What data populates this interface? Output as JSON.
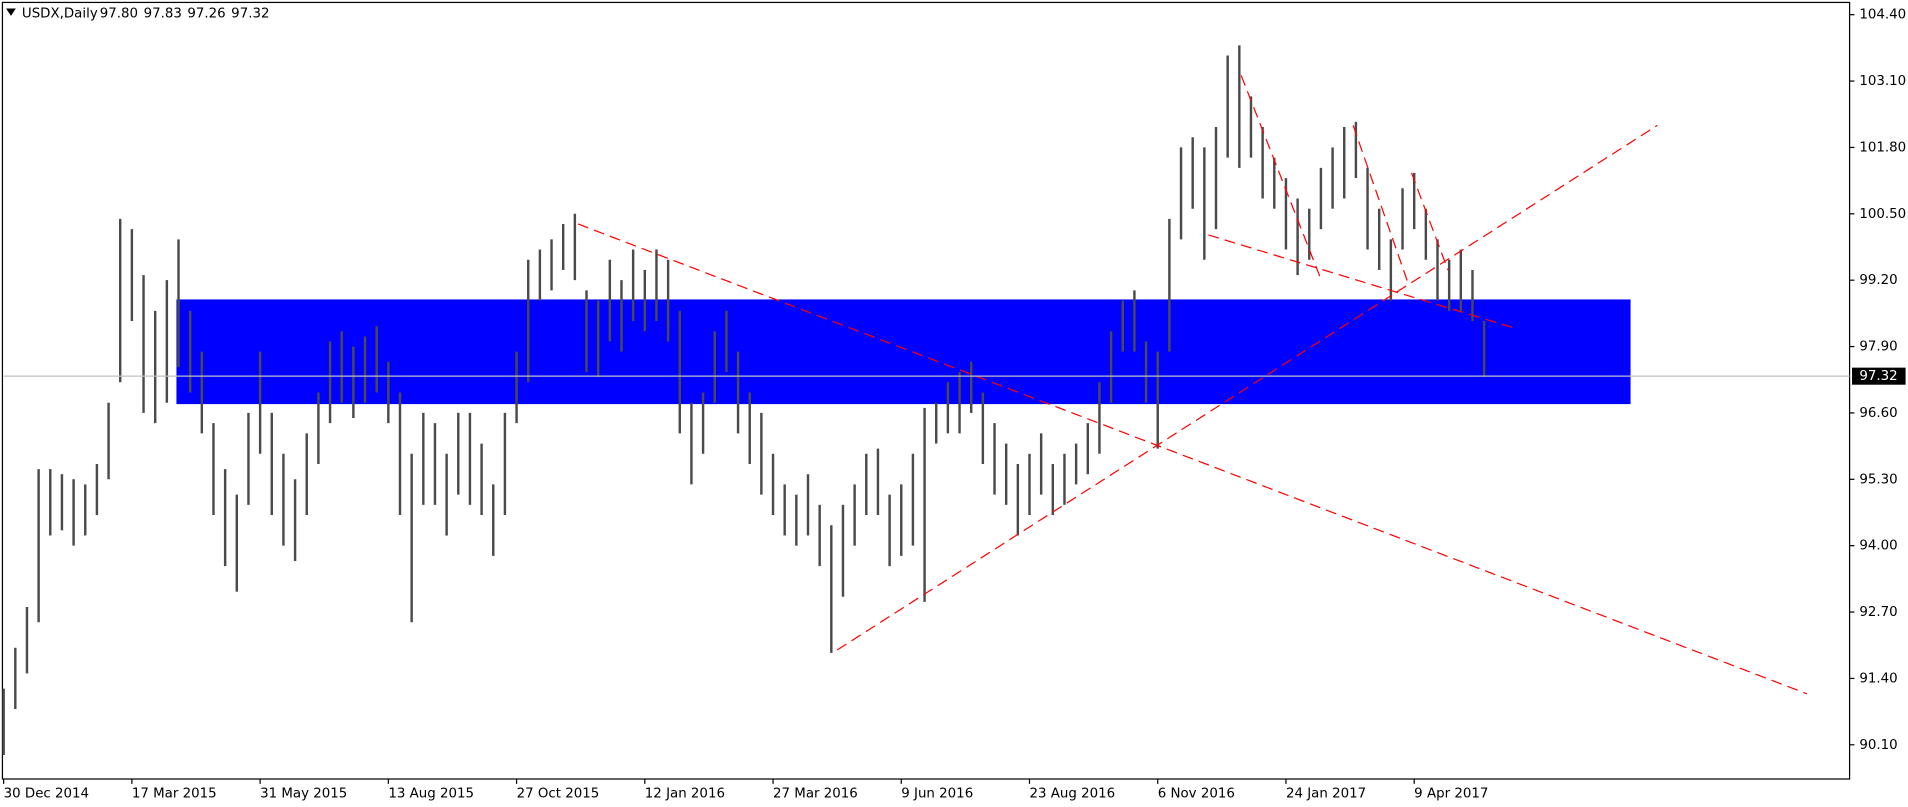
{
  "chart_data": {
    "type": "range",
    "title": "USDX,Daily",
    "last_bar": [
      "97.80",
      "97.83",
      "97.26",
      "97.32"
    ],
    "categories": [
      "30 Dec 2014",
      null,
      null,
      null,
      null,
      null,
      null,
      null,
      null,
      null,
      null,
      "17 Mar 2015",
      null,
      null,
      null,
      null,
      null,
      null,
      null,
      null,
      null,
      null,
      "31 May 2015",
      null,
      null,
      null,
      null,
      null,
      null,
      null,
      null,
      null,
      null,
      "13 Aug 2015",
      null,
      null,
      null,
      null,
      null,
      null,
      null,
      null,
      null,
      null,
      "27 Oct 2015",
      null,
      null,
      null,
      null,
      null,
      null,
      null,
      null,
      null,
      null,
      "12 Jan 2016",
      null,
      null,
      null,
      null,
      null,
      null,
      null,
      null,
      null,
      null,
      "27 Mar 2016",
      null,
      null,
      null,
      null,
      null,
      null,
      null,
      null,
      null,
      null,
      "9 Jun 2016",
      null,
      null,
      null,
      null,
      null,
      null,
      null,
      null,
      null,
      null,
      "23 Aug 2016",
      null,
      null,
      null,
      null,
      null,
      null,
      null,
      null,
      null,
      null,
      "6 Nov 2016",
      null,
      null,
      null,
      null,
      null,
      null,
      null,
      null,
      null,
      null,
      "24 Jan 2017",
      null,
      null,
      null,
      null,
      null,
      null,
      null,
      null,
      null,
      null,
      "9 Apr 2017",
      null,
      null,
      null,
      null,
      null,
      null
    ],
    "low": [
      89.9,
      90.8,
      91.5,
      92.5,
      94.2,
      94.3,
      94.0,
      94.2,
      94.6,
      95.3,
      97.2,
      98.4,
      96.6,
      96.4,
      96.8,
      97.5,
      97.0,
      96.2,
      94.6,
      93.6,
      93.1,
      94.8,
      95.8,
      94.6,
      94.0,
      93.7,
      94.6,
      95.6,
      96.4,
      96.8,
      96.5,
      96.8,
      97.0,
      96.4,
      94.6,
      92.5,
      94.8,
      94.8,
      94.2,
      95.0,
      94.8,
      94.6,
      93.8,
      94.6,
      96.4,
      97.2,
      98.8,
      99.0,
      99.4,
      99.2,
      97.4,
      97.3,
      98.0,
      97.8,
      98.4,
      98.2,
      98.4,
      98.0,
      96.2,
      95.2,
      95.8,
      96.8,
      97.4,
      96.2,
      95.6,
      95.0,
      94.6,
      94.2,
      94.0,
      94.2,
      93.6,
      91.9,
      93.0,
      94.0,
      94.6,
      94.6,
      93.6,
      93.8,
      94.0,
      92.9,
      96.0,
      96.2,
      96.2,
      96.6,
      95.6,
      95.0,
      94.8,
      94.2,
      94.6,
      95.0,
      94.6,
      94.8,
      95.2,
      95.4,
      95.8,
      96.8,
      97.8,
      97.8,
      96.8,
      95.9,
      97.8,
      100.0,
      100.6,
      99.6,
      100.2,
      101.6,
      101.4,
      101.6,
      100.8,
      100.6,
      99.8,
      99.3,
      99.6,
      100.2,
      100.6,
      100.8,
      101.2,
      99.8,
      99.4,
      98.8,
      99.8,
      100.2,
      99.6,
      98.8,
      98.6,
      98.6,
      98.4,
      97.3
    ],
    "high": [
      91.2,
      92.0,
      92.8,
      95.5,
      95.5,
      95.4,
      95.3,
      95.2,
      95.6,
      96.8,
      100.4,
      100.2,
      99.3,
      98.6,
      99.2,
      100.0,
      98.6,
      97.8,
      96.4,
      95.5,
      95.0,
      96.6,
      97.8,
      96.6,
      95.8,
      95.3,
      96.2,
      97.0,
      98.0,
      98.2,
      97.9,
      98.1,
      98.3,
      97.6,
      97.0,
      95.8,
      96.6,
      96.4,
      95.8,
      96.6,
      96.6,
      96.0,
      95.2,
      96.6,
      97.8,
      99.6,
      99.8,
      100.0,
      100.3,
      100.5,
      99.0,
      98.8,
      99.6,
      99.2,
      99.8,
      99.4,
      99.8,
      99.6,
      98.6,
      96.8,
      97.0,
      98.2,
      98.6,
      97.8,
      97.0,
      96.6,
      95.8,
      95.2,
      95.0,
      95.4,
      94.8,
      94.4,
      94.8,
      95.2,
      95.8,
      95.9,
      95.0,
      95.2,
      95.8,
      96.7,
      96.8,
      97.2,
      97.4,
      97.6,
      97.0,
      96.4,
      96.0,
      95.6,
      95.8,
      96.2,
      95.6,
      95.8,
      96.0,
      96.4,
      97.2,
      98.2,
      98.8,
      99.0,
      98.0,
      97.8,
      100.4,
      101.8,
      102.0,
      101.8,
      102.2,
      103.6,
      103.8,
      102.8,
      102.2,
      101.6,
      101.2,
      100.8,
      100.6,
      101.4,
      101.8,
      102.2,
      102.3,
      101.4,
      100.6,
      100.0,
      101.0,
      101.3,
      100.6,
      100.0,
      99.6,
      99.8,
      99.4,
      98.4
    ],
    "color": "#4a4a4a",
    "ylim": [
      89.43,
      104.64
    ],
    "yticks": [
      {
        "value": 90.1,
        "label": "90.10"
      },
      {
        "value": 91.4,
        "label": "91.40"
      },
      {
        "value": 92.7,
        "label": "92.70"
      },
      {
        "value": 94.0,
        "label": "94.00"
      },
      {
        "value": 95.3,
        "label": "95.30"
      },
      {
        "value": 96.6,
        "label": "96.60"
      },
      {
        "value": 97.9,
        "label": "97.90"
      },
      {
        "value": 99.2,
        "label": "99.20"
      },
      {
        "value": 100.5,
        "label": "100.50"
      },
      {
        "value": 101.8,
        "label": "101.80"
      },
      {
        "value": 103.1,
        "label": "103.10"
      },
      {
        "value": 104.4,
        "label": "104.40"
      }
    ],
    "last_price": {
      "value": 97.32,
      "label": "97.32"
    }
  }
}
